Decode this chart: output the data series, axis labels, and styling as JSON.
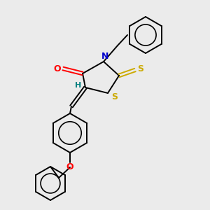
{
  "background_color": "#ebebeb",
  "bond_color": "#000000",
  "atom_colors": {
    "O": "#ff0000",
    "N": "#0000cc",
    "S": "#ccaa00",
    "H": "#008080",
    "C": "#000000"
  },
  "figsize": [
    3.0,
    3.0
  ],
  "dpi": 100,
  "lw": 1.4
}
